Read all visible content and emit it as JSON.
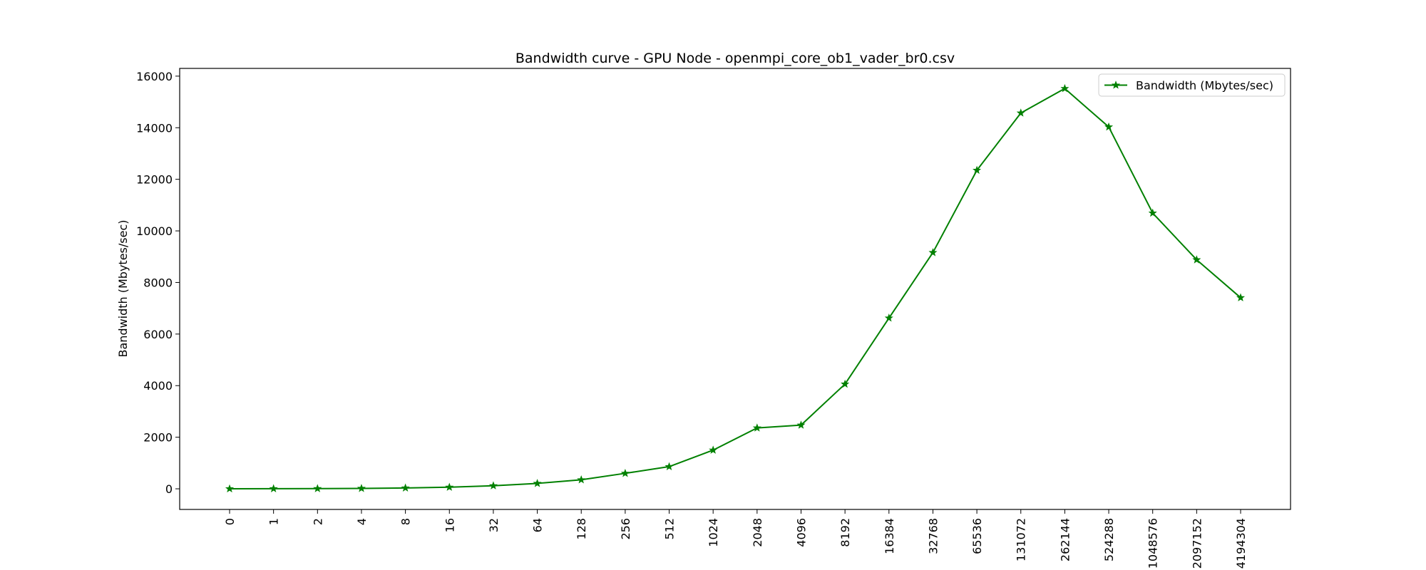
{
  "chart_data": {
    "type": "line",
    "title": "Bandwidth curve - GPU Node - openmpi_core_ob1_vader_br0.csv",
    "xlabel": "",
    "ylabel": "Bandwidth (Mbytes/sec)",
    "categories": [
      "0",
      "1",
      "2",
      "4",
      "8",
      "16",
      "32",
      "64",
      "128",
      "256",
      "512",
      "1024",
      "2048",
      "4096",
      "8192",
      "16384",
      "32768",
      "65536",
      "131072",
      "262144",
      "524288",
      "1048576",
      "2097152",
      "4194304"
    ],
    "series": [
      {
        "name": "Bandwidth (Mbytes/sec)",
        "color": "#008000",
        "marker": "star",
        "values": [
          0,
          4,
          8,
          16,
          32,
          62,
          118,
          210,
          350,
          600,
          860,
          1500,
          2360,
          2470,
          4060,
          6620,
          9160,
          12350,
          14570,
          15520,
          14030,
          10690,
          8880,
          7410
        ]
      }
    ],
    "ylim": [
      -800,
      16300
    ],
    "yticks": [
      0,
      2000,
      4000,
      6000,
      8000,
      10000,
      12000,
      14000,
      16000
    ],
    "grid": false,
    "legend_position": "top-right"
  }
}
